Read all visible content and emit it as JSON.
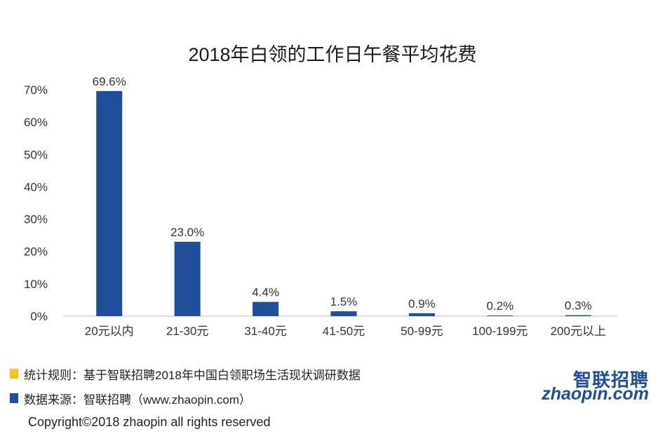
{
  "chart_data": {
    "type": "bar",
    "title": "2018年白领的工作日午餐平均花费",
    "categories": [
      "20元以内",
      "21-30元",
      "31-40元",
      "41-50元",
      "50-99元",
      "100-199元",
      "200元以上"
    ],
    "values": [
      69.6,
      23.0,
      4.4,
      1.5,
      0.9,
      0.2,
      0.3
    ],
    "value_labels": [
      "69.6%",
      "23.0%",
      "4.4%",
      "1.5%",
      "0.9%",
      "0.2%",
      "0.3%"
    ],
    "yticks": [
      "0%",
      "10%",
      "20%",
      "30%",
      "40%",
      "50%",
      "60%",
      "70%"
    ],
    "ylim": [
      0,
      70
    ],
    "grid": false,
    "bar_color": "#1f4e9a"
  },
  "notes": [
    {
      "text": "统计规则：基于智联招聘2018年中国白领职场生活现状调研数据",
      "color": "#f5c518"
    },
    {
      "text": "数据来源：智联招聘（www.zhaopin.com）",
      "color": "#1f4e9a"
    }
  ],
  "copyright": "Copyright©2018 zhaopin all rights reserved",
  "logo": {
    "cn": "智联招聘",
    "en": "zhaopin.com"
  }
}
